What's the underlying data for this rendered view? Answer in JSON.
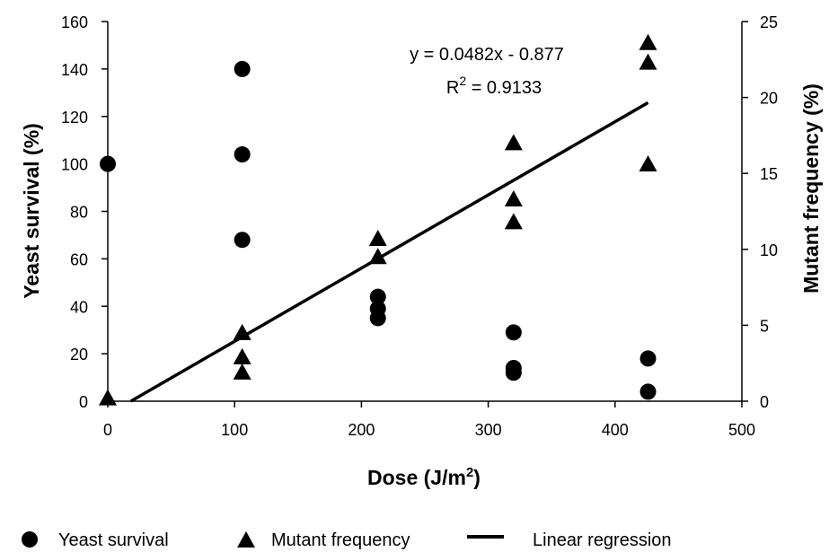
{
  "chart_data": {
    "type": "scatter",
    "xlabel_main": "Dose (J/m",
    "xlabel_sup": "2",
    "xlabel_end": ")",
    "ylabel_left": "Yeast survival (%)",
    "ylabel_right": "Mutant frequency (%)",
    "xlim": [
      0,
      500
    ],
    "ylim_left": [
      0,
      160
    ],
    "ylim_right": [
      0,
      25
    ],
    "x_ticks": [
      "0",
      "100",
      "200",
      "300",
      "400",
      "500"
    ],
    "y_left_ticks": [
      "0",
      "20",
      "40",
      "60",
      "80",
      "100",
      "120",
      "140",
      "160"
    ],
    "y_right_ticks": [
      "0",
      "5",
      "10",
      "15",
      "20",
      "25"
    ],
    "series": [
      {
        "name": "Yeast survival",
        "marker": "circle",
        "axis": "left",
        "color": "#000000",
        "points": [
          [
            0,
            100
          ],
          [
            106,
            140
          ],
          [
            106,
            104
          ],
          [
            106,
            68
          ],
          [
            213,
            44
          ],
          [
            213,
            39
          ],
          [
            213,
            35
          ],
          [
            320,
            29
          ],
          [
            320,
            14
          ],
          [
            320,
            12
          ],
          [
            426,
            18
          ],
          [
            426,
            4
          ]
        ]
      },
      {
        "name": "Mutant frequency",
        "marker": "triangle",
        "axis": "right",
        "color": "#000000",
        "points": [
          [
            0,
            0.2
          ],
          [
            106,
            4.5
          ],
          [
            106,
            2.9
          ],
          [
            106,
            1.9
          ],
          [
            213,
            10.7
          ],
          [
            213,
            9.5
          ],
          [
            320,
            17.0
          ],
          [
            320,
            13.3
          ],
          [
            320,
            11.8
          ],
          [
            426,
            23.6
          ],
          [
            426,
            22.3
          ],
          [
            426,
            15.6
          ]
        ]
      },
      {
        "name": "Linear regression",
        "type": "line",
        "axis": "right",
        "slope": 0.0482,
        "intercept": -0.877,
        "x_range": [
          18.2,
          426
        ]
      }
    ],
    "annotation": {
      "equation": "y = 0.0482x - 0.877",
      "r2_label": "R",
      "r2_sup": "2",
      "r2_value": " = 0.9133"
    },
    "legend": {
      "position": "bottom",
      "items": [
        "Yeast survival",
        "Mutant frequency",
        "Linear regression"
      ]
    }
  }
}
